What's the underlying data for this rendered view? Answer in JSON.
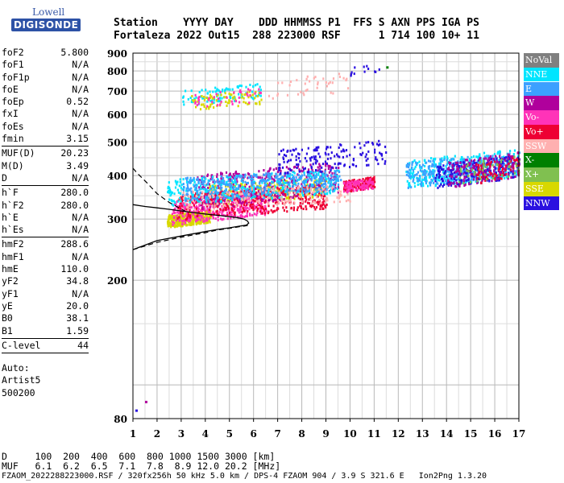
{
  "logo": {
    "top": "Lowell",
    "bottom": "DIGISONDE"
  },
  "header": {
    "row1": "Station    YYYY DAY    DDD HHMMSS P1  FFS S AXN PPS IGA PS",
    "row2": "Fortaleza 2022 Out15  288 223000 RSF      1 714 100 10+ 11"
  },
  "params": {
    "group1": [
      {
        "k": "foF2",
        "v": "5.800"
      },
      {
        "k": "foF1",
        "v": "N/A"
      },
      {
        "k": "foF1p",
        "v": "N/A"
      },
      {
        "k": "foE",
        "v": "N/A"
      },
      {
        "k": "foEp",
        "v": "0.52"
      },
      {
        "k": "fxI",
        "v": "N/A"
      },
      {
        "k": "foEs",
        "v": "N/A"
      },
      {
        "k": "fmin",
        "v": "3.15"
      }
    ],
    "group2": [
      {
        "k": "MUF(D)",
        "v": "20.23"
      },
      {
        "k": "M(D)",
        "v": "3.49"
      },
      {
        "k": "D",
        "v": "N/A"
      }
    ],
    "group3": [
      {
        "k": "h`F",
        "v": "280.0"
      },
      {
        "k": "h`F2",
        "v": "280.0"
      },
      {
        "k": "h`E",
        "v": "N/A"
      },
      {
        "k": "h`Es",
        "v": "N/A"
      }
    ],
    "group4": [
      {
        "k": "hmF2",
        "v": "288.6"
      },
      {
        "k": "hmF1",
        "v": "N/A"
      },
      {
        "k": "hmE",
        "v": "110.0"
      },
      {
        "k": "yF2",
        "v": "34.8"
      },
      {
        "k": "yF1",
        "v": "N/A"
      },
      {
        "k": "yE",
        "v": "20.0"
      },
      {
        "k": "B0",
        "v": "38.1"
      },
      {
        "k": "B1",
        "v": "1.59"
      }
    ],
    "group5": [
      {
        "k": "C-level",
        "v": "44"
      }
    ],
    "auto": [
      "Auto:",
      "Artist5",
      "500200"
    ]
  },
  "legend": [
    {
      "label": "NoVal",
      "color": "#808080"
    },
    {
      "label": "NNE",
      "color": "#00e5ff"
    },
    {
      "label": "E",
      "color": "#3ca0ff"
    },
    {
      "label": "W",
      "color": "#b0009c"
    },
    {
      "label": "Vo-",
      "color": "#ff33b8"
    },
    {
      "label": "Vo+",
      "color": "#ee0033"
    },
    {
      "label": "SSW",
      "color": "#ffb0b0"
    },
    {
      "label": "X-",
      "color": "#008000"
    },
    {
      "label": "X+",
      "color": "#80c050"
    },
    {
      "label": "SSE",
      "color": "#d8d800"
    },
    {
      "label": "NNW",
      "color": "#2a10e0"
    }
  ],
  "footer": {
    "line1": "D     100  200  400  600  800 1000 1500 3000 [km]",
    "line2": "MUF   6.1  6.2  6.5  7.1  7.8  8.9 12.0 20.2 [MHz]",
    "line3": "FZAOM_2022288223000.RSF / 320fx256h 50 kHz 5.0 km / DPS-4 FZAOM 904 / 3.9 S 321.6 E   Ion2Png 1.3.20"
  },
  "chart_data": {
    "type": "scatter",
    "x_ticks": [
      "1",
      "2",
      "3",
      "4",
      "5",
      "6",
      "7",
      "8",
      "9",
      "10",
      "11",
      "12",
      "13",
      "14",
      "15",
      "16",
      "17"
    ],
    "y_ticks": [
      "80",
      "200",
      "300",
      "400",
      "500",
      "600",
      "700",
      "800",
      "900"
    ],
    "xlim": [
      1,
      17
    ],
    "ylim": [
      80,
      900
    ],
    "y_scale": "log",
    "grid": true,
    "legend_placement": "right",
    "profile_curve": {
      "freq": [
        1.0,
        2.0,
        3.0,
        4.0,
        4.5,
        5.0,
        5.4,
        5.7,
        5.8,
        5.75,
        5.6,
        5.3,
        4.8,
        4.0,
        3.2,
        2.5,
        2.0,
        1.5,
        1.0
      ],
      "height": [
        245,
        260,
        268,
        276,
        280,
        283,
        286,
        288,
        292,
        296,
        300,
        303,
        306,
        310,
        315,
        320,
        323,
        326,
        330
      ]
    },
    "extrapolated_lower": {
      "freq": [
        1.0,
        2.0,
        3.0,
        4.0,
        4.5,
        5.0,
        5.4,
        5.7,
        5.8
      ],
      "height": [
        245,
        257,
        266,
        274,
        279,
        282,
        285,
        287,
        288
      ]
    },
    "extrapolated_upper": {
      "freq": [
        3.2,
        2.5,
        2.0,
        1.6,
        1.2,
        1.0
      ],
      "height": [
        315,
        335,
        355,
        380,
        405,
        420
      ]
    },
    "clusters": [
      {
        "series": "SSE",
        "x": [
          2.4,
          4.2
        ],
        "y": [
          285,
          320
        ],
        "n": 380
      },
      {
        "series": "SSE",
        "x": [
          4.0,
          9.0
        ],
        "y": [
          330,
          400
        ],
        "n": 260
      },
      {
        "series": "Vo-",
        "x": [
          2.6,
          6.5
        ],
        "y": [
          290,
          360
        ],
        "n": 420
      },
      {
        "series": "Vo+",
        "x": [
          2.8,
          9.0
        ],
        "y": [
          300,
          380
        ],
        "n": 380
      },
      {
        "series": "W",
        "x": [
          3.5,
          9.5
        ],
        "y": [
          320,
          440
        ],
        "n": 380
      },
      {
        "series": "NNE",
        "x": [
          2.4,
          9.5
        ],
        "y": [
          330,
          420
        ],
        "n": 360
      },
      {
        "series": "E",
        "x": [
          3.0,
          9.6
        ],
        "y": [
          340,
          420
        ],
        "n": 380
      },
      {
        "series": "SSW",
        "x": [
          3.0,
          10.0
        ],
        "y": [
          320,
          380
        ],
        "n": 160
      },
      {
        "series": "NNW",
        "x": [
          7.0,
          11.5
        ],
        "y": [
          400,
          510
        ],
        "n": 160
      },
      {
        "series": "Vo+",
        "x": [
          9.7,
          11.0
        ],
        "y": [
          360,
          400
        ],
        "n": 150
      },
      {
        "series": "Vo-",
        "x": [
          9.7,
          11.0
        ],
        "y": [
          360,
          395
        ],
        "n": 90
      },
      {
        "series": "NNE",
        "x": [
          12.3,
          17.0
        ],
        "y": [
          365,
          480
        ],
        "n": 360
      },
      {
        "series": "E",
        "x": [
          12.3,
          17.0
        ],
        "y": [
          370,
          470
        ],
        "n": 300
      },
      {
        "series": "NNW",
        "x": [
          13.5,
          17.0
        ],
        "y": [
          370,
          460
        ],
        "n": 240
      },
      {
        "series": "W",
        "x": [
          14.0,
          17.0
        ],
        "y": [
          370,
          470
        ],
        "n": 160
      },
      {
        "series": "Vo+",
        "x": [
          15.2,
          17.0
        ],
        "y": [
          380,
          460
        ],
        "n": 70
      },
      {
        "series": "X+",
        "x": [
          14.5,
          17.0
        ],
        "y": [
          380,
          460
        ],
        "n": 50
      },
      {
        "series": "NNE",
        "x": [
          3.0,
          6.3
        ],
        "y": [
          640,
          740
        ],
        "n": 90
      },
      {
        "series": "SSE",
        "x": [
          3.4,
          6.3
        ],
        "y": [
          620,
          710
        ],
        "n": 80
      },
      {
        "series": "Vo-",
        "x": [
          3.5,
          6.3
        ],
        "y": [
          630,
          720
        ],
        "n": 40
      },
      {
        "series": "SSW",
        "x": [
          6.5,
          10.0
        ],
        "y": [
          660,
          800
        ],
        "n": 40
      },
      {
        "series": "NNW",
        "x": [
          10.0,
          11.5
        ],
        "y": [
          780,
          850
        ],
        "n": 12
      }
    ]
  }
}
